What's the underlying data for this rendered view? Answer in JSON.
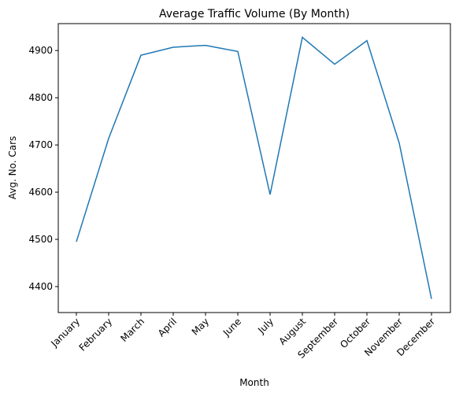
{
  "chart_data": {
    "type": "line",
    "title": "Average Traffic Volume (By Month)",
    "xlabel": "Month",
    "ylabel": "Avg. No. Cars",
    "categories": [
      "January",
      "February",
      "March",
      "April",
      "May",
      "June",
      "July",
      "August",
      "September",
      "October",
      "November",
      "December"
    ],
    "series": [
      {
        "values": [
          4495,
          4714,
          4890,
          4907,
          4911,
          4898,
          4595,
          4928,
          4871,
          4921,
          4704,
          4374
        ],
        "color": "#1f77b4"
      }
    ],
    "ylim": [
      4345,
      4957
    ],
    "yticks": [
      "4400",
      "4500",
      "4600",
      "4700",
      "4800",
      "4900"
    ],
    "grid": false,
    "legend": "none"
  }
}
